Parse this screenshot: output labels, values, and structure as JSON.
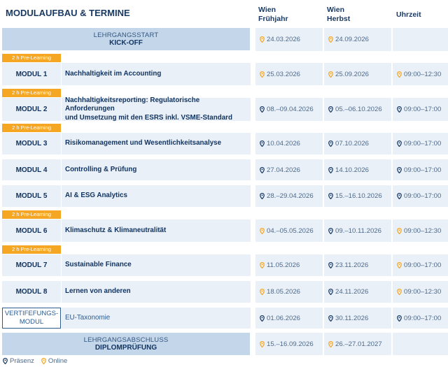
{
  "header": {
    "title": "MODULAUFBAU & TERMINE",
    "col_spring_l1": "Wien",
    "col_spring_l2": "Frühjahr",
    "col_autumn_l1": "Wien",
    "col_autumn_l2": "Herbst",
    "col_time": "Uhrzeit"
  },
  "kickoff": {
    "sub": "LEHRGANGSSTART",
    "main": "KICK-OFF",
    "spring": "24.03.2026",
    "autumn": "24.09.2026"
  },
  "pre_learning_label": "2 h Pre-Learning",
  "modules": [
    {
      "name": "MODUL 1",
      "title": "Nachhaltigkeit im Accounting",
      "spring": "25.03.2026",
      "autumn": "25.09.2026",
      "time": "09:00–12:30"
    },
    {
      "name": "MODUL 2",
      "title": "Nachhaltigkeitsreporting: Regulatorische Anforderungen",
      "title2": "und Umsetzung mit den ESRS inkl. VSME-Standard",
      "spring": "08.–09.04.2026",
      "autumn": "05.–06.10.2026",
      "time": "09:00–17:00"
    },
    {
      "name": "MODUL 3",
      "title": "Risikomanagement und Wesentlichkeitsanalyse",
      "spring": "10.04.2026",
      "autumn": "07.10.2026",
      "time": "09:00–17:00"
    },
    {
      "name": "MODUL 4",
      "title": "Controlling & Prüfung",
      "spring": "27.04.2026",
      "autumn": "14.10.2026",
      "time": "09:00–17:00"
    },
    {
      "name": "MODUL 5",
      "title": "AI & ESG Analytics",
      "spring": "28.–29.04.2026",
      "autumn": "15.–16.10.2026",
      "time": "09:00–17:00"
    },
    {
      "name": "MODUL 6",
      "title": "Klimaschutz & Klimaneutralität",
      "spring": "04.–05.05.2026",
      "autumn": "09.–10.11.2026",
      "time": "09:00–12:30"
    },
    {
      "name": "MODUL 7",
      "title": "Sustainable Finance",
      "spring": "11.05.2026",
      "autumn": "23.11.2026",
      "time": "09:00–17:00"
    },
    {
      "name": "MODUL 8",
      "title": "Lernen von anderen",
      "spring": "18.05.2026",
      "autumn": "24.11.2026",
      "time": "09:00–12:30"
    },
    {
      "name_l1": "VERTIFEFUNGS-",
      "name_l2": "MODUL",
      "title": "EU-Taxonomie",
      "spring": "01.06.2026",
      "autumn": "30.11.2026",
      "time": "09:00–17:00"
    }
  ],
  "final": {
    "sub": "LEHRGANGSABSCHLUSS",
    "main": "DIPLOMPRÜFUNG",
    "spring": "15.–16.09.2026",
    "autumn": "26.–27.01.2027"
  },
  "legend": {
    "presence": "Präsenz",
    "online": "Online"
  },
  "colors": {
    "presence_pin": "#1b3a63",
    "online_pin": "#f5a623",
    "pre_learning_badge": "#f5a623",
    "band": "#c4d7ea",
    "row_bg": "#e9f0f7"
  },
  "icons": {
    "presence": "map-pin-icon",
    "online": "map-pin-icon"
  }
}
